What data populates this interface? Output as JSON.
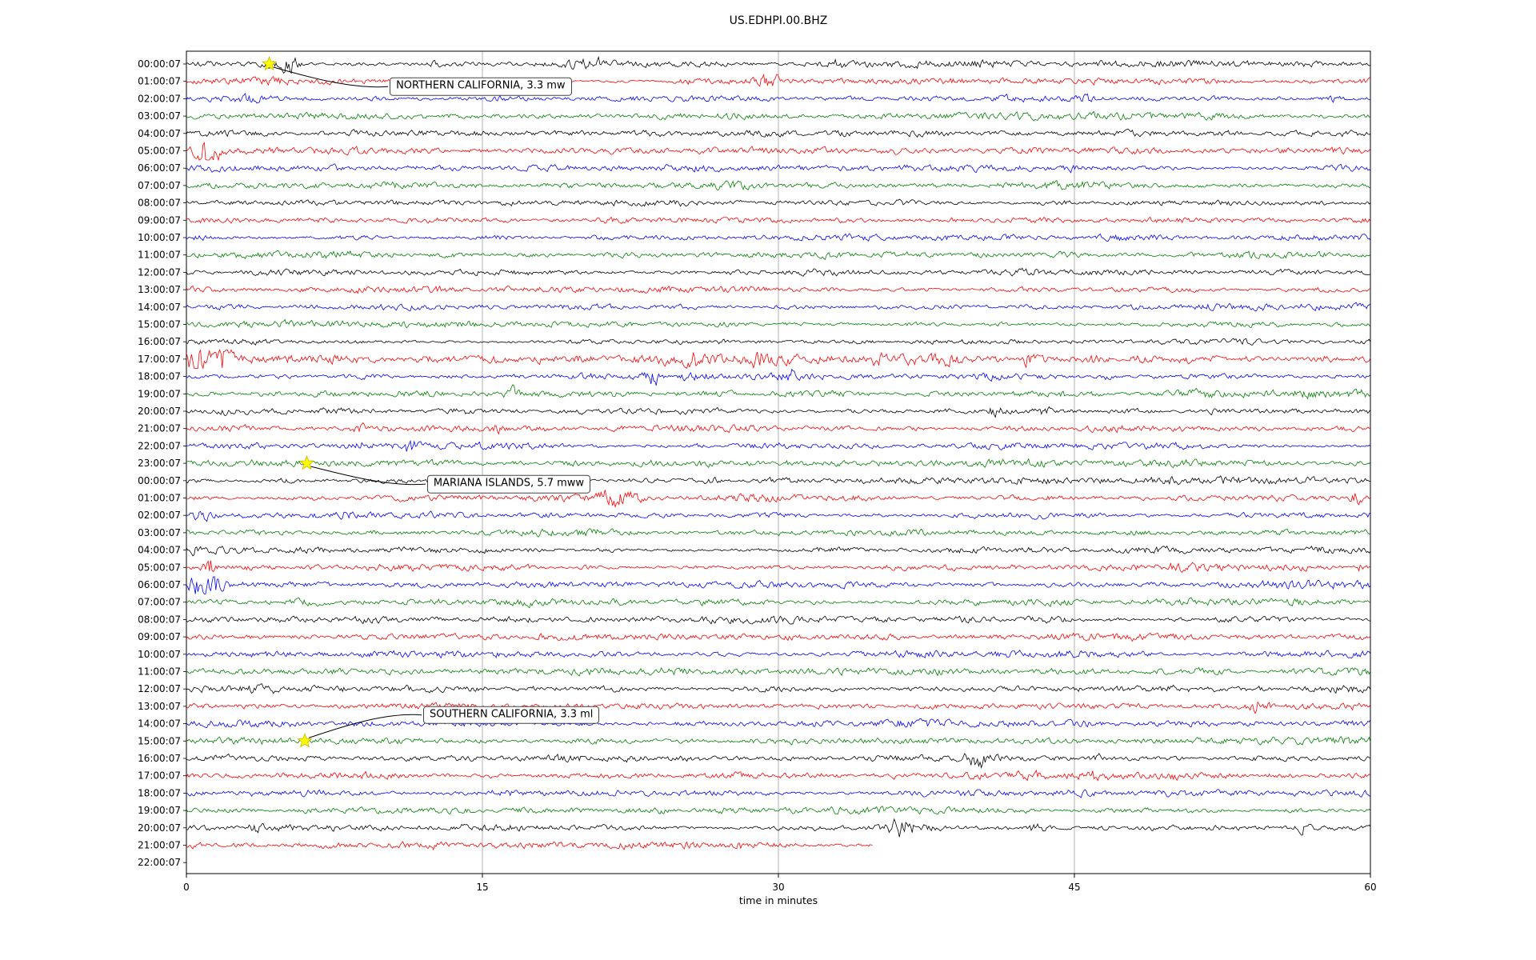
{
  "title": "US.EDHPI.00.BHZ",
  "chart_data": {
    "type": "line",
    "subtype": "helicorder-dayplot-seismogram",
    "title": "US.EDHPI.00.BHZ",
    "xlabel": "time in minutes",
    "xlim": [
      0,
      60
    ],
    "x_ticks": [
      "0",
      "15",
      "30",
      "45",
      "60"
    ],
    "grid": true,
    "grid_minutes": [
      15,
      30,
      45
    ],
    "grid_color": "#b0b0b0",
    "trace_color_cycle": [
      "#000000",
      "#ff0000",
      "#0000ff",
      "#008000"
    ],
    "marker_color": "#ffff00",
    "rows": [
      {
        "label": "00:00:07",
        "color": "#000000",
        "coverage": 1,
        "amp": 1,
        "bursts": [
          [
            4.6,
            4,
            0.8
          ],
          [
            5.4,
            3,
            0.5
          ],
          [
            12.6,
            2.5,
            0.3
          ],
          [
            19.8,
            3.5,
            0.5
          ],
          [
            20.7,
            3,
            0.4
          ],
          [
            33,
            2,
            0.3
          ]
        ]
      },
      {
        "label": "01:00:07",
        "color": "#ff0000",
        "coverage": 1,
        "amp": 1,
        "bursts": [
          [
            28.9,
            2,
            0.3
          ],
          [
            29.6,
            3.2,
            0.4
          ]
        ]
      },
      {
        "label": "02:00:07",
        "color": "#0000ff",
        "coverage": 1,
        "amp": 1,
        "bursts": [
          [
            3.2,
            2.5,
            0.5
          ],
          [
            45.7,
            2.2,
            0.4
          ],
          [
            58,
            1.8,
            0.3
          ]
        ]
      },
      {
        "label": "03:00:07",
        "color": "#008000",
        "coverage": 1,
        "amp": 1,
        "bursts": []
      },
      {
        "label": "04:00:07",
        "color": "#000000",
        "coverage": 1,
        "amp": 1,
        "bursts": [
          [
            7,
            2,
            0.3
          ],
          [
            8.3,
            2.2,
            0.25
          ]
        ]
      },
      {
        "label": "05:00:07",
        "color": "#ff0000",
        "coverage": 1,
        "amp": 1,
        "bursts": [
          [
            0.9,
            5,
            0.5
          ],
          [
            1.5,
            3,
            0.4
          ]
        ]
      },
      {
        "label": "06:00:07",
        "color": "#0000ff",
        "coverage": 1,
        "amp": 1,
        "bursts": []
      },
      {
        "label": "07:00:07",
        "color": "#008000",
        "coverage": 1,
        "amp": 1,
        "bursts": []
      },
      {
        "label": "08:00:07",
        "color": "#000000",
        "coverage": 1,
        "amp": 1,
        "bursts": []
      },
      {
        "label": "09:00:07",
        "color": "#ff0000",
        "coverage": 1,
        "amp": 1,
        "bursts": []
      },
      {
        "label": "10:00:07",
        "color": "#0000ff",
        "coverage": 1,
        "amp": 1,
        "bursts": []
      },
      {
        "label": "11:00:07",
        "color": "#008000",
        "coverage": 1,
        "amp": 1,
        "bursts": []
      },
      {
        "label": "12:00:07",
        "color": "#000000",
        "coverage": 1,
        "amp": 1,
        "bursts": []
      },
      {
        "label": "13:00:07",
        "color": "#ff0000",
        "coverage": 1,
        "amp": 1,
        "bursts": []
      },
      {
        "label": "14:00:07",
        "color": "#0000ff",
        "coverage": 1,
        "amp": 1,
        "bursts": []
      },
      {
        "label": "15:00:07",
        "color": "#008000",
        "coverage": 1,
        "amp": 1,
        "bursts": []
      },
      {
        "label": "16:00:07",
        "color": "#000000",
        "coverage": 1,
        "amp": 1,
        "bursts": [
          [
            0.3,
            2,
            0.2
          ]
        ]
      },
      {
        "label": "17:00:07",
        "color": "#ff0000",
        "coverage": 1,
        "amp": 1.5,
        "bursts": [
          [
            0.5,
            4.5,
            0.6
          ],
          [
            1.9,
            3,
            0.4
          ],
          [
            24.2,
            2.2,
            0.4
          ],
          [
            25.6,
            2.2,
            0.4
          ],
          [
            29,
            2.2,
            0.4
          ],
          [
            35,
            2,
            0.4
          ],
          [
            38.8,
            2.2,
            0.4
          ],
          [
            42.6,
            2.2,
            0.4
          ],
          [
            46,
            2,
            0.3
          ],
          [
            48.5,
            2.2,
            0.4
          ],
          [
            51,
            2,
            0.3
          ],
          [
            57.6,
            2.6,
            0.5
          ]
        ]
      },
      {
        "label": "18:00:07",
        "color": "#0000ff",
        "coverage": 1,
        "amp": 1,
        "bursts": [
          [
            23.7,
            2.6,
            0.3
          ],
          [
            30.6,
            2.2,
            0.3
          ],
          [
            46.6,
            2.2,
            0.3
          ]
        ]
      },
      {
        "label": "19:00:07",
        "color": "#008000",
        "coverage": 1,
        "amp": 1,
        "bursts": [
          [
            16.5,
            2.2,
            0.4
          ],
          [
            44.2,
            2.2,
            0.4
          ],
          [
            46.1,
            2,
            0.3
          ]
        ]
      },
      {
        "label": "20:00:07",
        "color": "#000000",
        "coverage": 1,
        "amp": 1,
        "bursts": [
          [
            2,
            1.6,
            0.3
          ],
          [
            41,
            2.3,
            0.4
          ],
          [
            43.6,
            2.3,
            0.4
          ],
          [
            52,
            1.7,
            0.3
          ]
        ]
      },
      {
        "label": "21:00:07",
        "color": "#ff0000",
        "coverage": 1,
        "amp": 1,
        "bursts": [
          [
            8.9,
            2,
            0.3
          ],
          [
            15.8,
            2.2,
            0.3
          ]
        ]
      },
      {
        "label": "22:00:07",
        "color": "#0000ff",
        "coverage": 1,
        "amp": 1,
        "bursts": [
          [
            9,
            2.3,
            0.4
          ],
          [
            11.3,
            2.6,
            0.3
          ],
          [
            26,
            1.8,
            0.3
          ]
        ]
      },
      {
        "label": "23:00:07",
        "color": "#008000",
        "coverage": 1,
        "amp": 1,
        "bursts": []
      },
      {
        "label": "00:00:07",
        "color": "#000000",
        "coverage": 1,
        "amp": 1,
        "bursts": [
          [
            26.7,
            2.6,
            0.4
          ]
        ]
      },
      {
        "label": "01:00:07",
        "color": "#ff0000",
        "coverage": 1,
        "amp": 1,
        "bursts": [
          [
            21.6,
            3.8,
            0.6
          ],
          [
            22.7,
            3,
            0.5
          ],
          [
            59.3,
            6,
            0.3
          ]
        ]
      },
      {
        "label": "02:00:07",
        "color": "#0000ff",
        "coverage": 1,
        "amp": 1,
        "bursts": [
          [
            0.8,
            3.5,
            0.6
          ],
          [
            8,
            2,
            0.3
          ]
        ]
      },
      {
        "label": "03:00:07",
        "color": "#008000",
        "coverage": 1,
        "amp": 1,
        "bursts": []
      },
      {
        "label": "04:00:07",
        "color": "#000000",
        "coverage": 1,
        "amp": 1,
        "bursts": [
          [
            0.4,
            2,
            0.3
          ]
        ]
      },
      {
        "label": "05:00:07",
        "color": "#ff0000",
        "coverage": 1,
        "amp": 1,
        "bursts": [
          [
            1.1,
            4,
            0.3
          ],
          [
            59.5,
            2.6,
            0.3
          ]
        ]
      },
      {
        "label": "06:00:07",
        "color": "#0000ff",
        "coverage": 1,
        "amp": 1,
        "bursts": [
          [
            0.6,
            4.5,
            0.8
          ],
          [
            1.6,
            2.6,
            0.4
          ]
        ]
      },
      {
        "label": "07:00:07",
        "color": "#008000",
        "coverage": 1,
        "amp": 1,
        "bursts": []
      },
      {
        "label": "08:00:07",
        "color": "#000000",
        "coverage": 1,
        "amp": 1,
        "bursts": []
      },
      {
        "label": "09:00:07",
        "color": "#ff0000",
        "coverage": 1,
        "amp": 1,
        "bursts": []
      },
      {
        "label": "10:00:07",
        "color": "#0000ff",
        "coverage": 1,
        "amp": 1,
        "bursts": []
      },
      {
        "label": "11:00:07",
        "color": "#008000",
        "coverage": 1,
        "amp": 1,
        "bursts": []
      },
      {
        "label": "12:00:07",
        "color": "#000000",
        "coverage": 1,
        "amp": 1,
        "bursts": []
      },
      {
        "label": "13:00:07",
        "color": "#ff0000",
        "coverage": 1,
        "amp": 1,
        "bursts": [
          [
            54.3,
            3,
            0.4
          ]
        ]
      },
      {
        "label": "14:00:07",
        "color": "#0000ff",
        "coverage": 1,
        "amp": 1,
        "bursts": []
      },
      {
        "label": "15:00:07",
        "color": "#008000",
        "coverage": 1,
        "amp": 1,
        "bursts": []
      },
      {
        "label": "16:00:07",
        "color": "#000000",
        "coverage": 1,
        "amp": 1,
        "bursts": [
          [
            40,
            3.8,
            0.5
          ],
          [
            40.8,
            2.6,
            0.4
          ],
          [
            46.2,
            2.2,
            0.3
          ],
          [
            54.2,
            2.4,
            0.3
          ]
        ]
      },
      {
        "label": "17:00:07",
        "color": "#ff0000",
        "coverage": 1,
        "amp": 1,
        "bursts": [
          [
            46,
            1.8,
            0.3
          ],
          [
            50,
            1.6,
            0.3
          ]
        ]
      },
      {
        "label": "18:00:07",
        "color": "#0000ff",
        "coverage": 1,
        "amp": 1,
        "bursts": []
      },
      {
        "label": "19:00:07",
        "color": "#008000",
        "coverage": 1,
        "amp": 1,
        "bursts": [
          [
            24.3,
            2,
            0.4
          ]
        ]
      },
      {
        "label": "20:00:07",
        "color": "#000000",
        "coverage": 1,
        "amp": 1,
        "bursts": [
          [
            3.5,
            1.7,
            0.3
          ],
          [
            14,
            1.7,
            0.3
          ],
          [
            36.2,
            2.6,
            0.5
          ],
          [
            43,
            2.6,
            0.6
          ],
          [
            56.6,
            2.2,
            0.3
          ]
        ]
      },
      {
        "label": "21:00:07",
        "color": "#ff0000",
        "coverage": 0.58,
        "amp": 1,
        "bursts": [
          [
            12.5,
            1.5,
            0.3
          ],
          [
            28,
            1.6,
            0.3
          ]
        ]
      },
      {
        "label": "22:00:07",
        "color": "#0000ff",
        "coverage": 0,
        "amp": 1,
        "bursts": []
      }
    ],
    "events": [
      {
        "label": "NORTHERN CALIFORNIA, 3.3 mw",
        "row": 0,
        "minute": 4.2,
        "box_minute": 10.3,
        "box_row": 1.3
      },
      {
        "label": "MARIANA ISLANDS, 5.7 mww",
        "row": 23,
        "minute": 6.1,
        "box_minute": 12.2,
        "box_row": 24.2
      },
      {
        "label": "SOUTHERN CALIFORNIA, 3.3 ml",
        "row": 39,
        "minute": 6.0,
        "box_minute": 12.0,
        "box_row": 37.5
      }
    ]
  }
}
